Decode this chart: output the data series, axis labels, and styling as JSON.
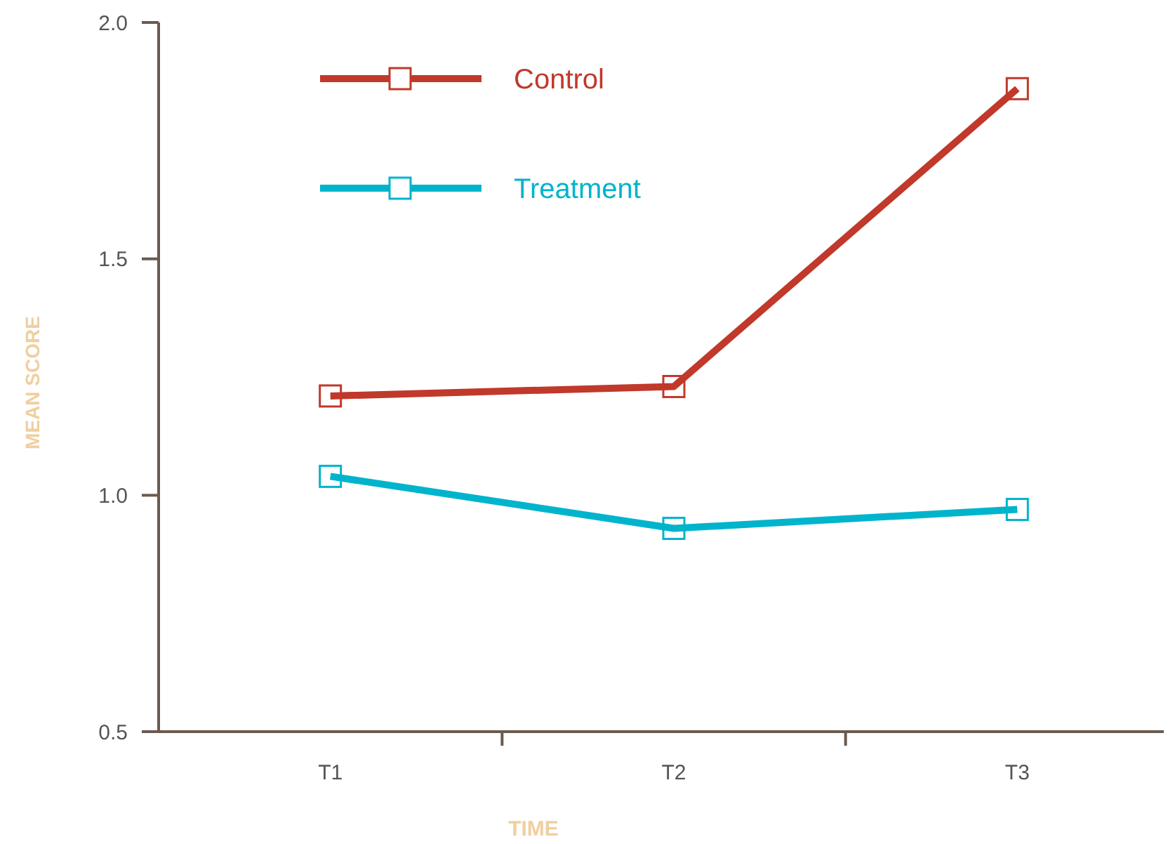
{
  "chart_data": {
    "type": "line",
    "xlabel": "TIME",
    "ylabel": "MEAN SCORE",
    "categories": [
      "T1",
      "T2",
      "T3"
    ],
    "series": [
      {
        "name": "Control",
        "color": "#c0392b",
        "values": [
          1.21,
          1.23,
          1.86
        ]
      },
      {
        "name": "Treatment",
        "color": "#00b4cc",
        "values": [
          1.04,
          0.93,
          0.97
        ]
      }
    ],
    "ylim": [
      0.5,
      2.0
    ],
    "yticks": [
      {
        "value": 0.5,
        "label": "0.5"
      },
      {
        "value": 1.0,
        "label": "1.0"
      },
      {
        "value": 1.5,
        "label": "1.5"
      },
      {
        "value": 2.0,
        "label": "2.0"
      }
    ],
    "legend": "top left",
    "marker": "square",
    "line_style": "solid"
  }
}
